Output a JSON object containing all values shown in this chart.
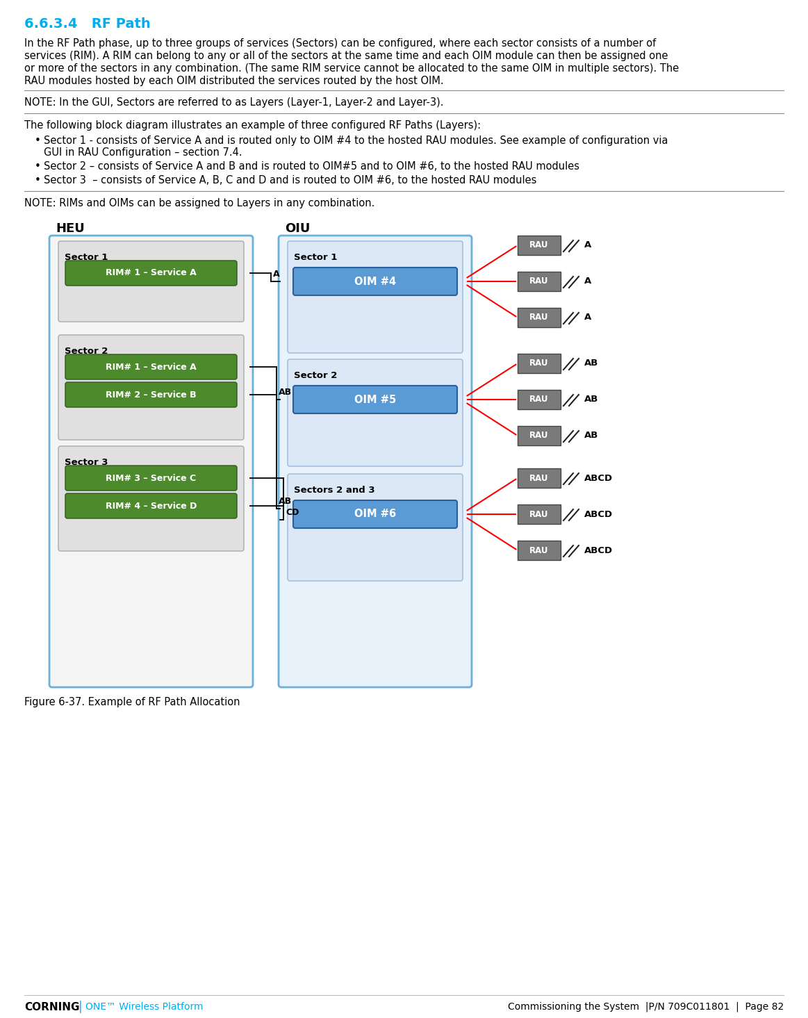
{
  "title": "6.6.3.4   RF Path",
  "title_color": "#00AEEF",
  "body_text_lines": [
    "In the RF Path phase, up to three groups of services (Sectors) can be configured, where each sector consists of a number of",
    "services (RIM). A RIM can belong to any or all of the sectors at the same time and each OIM module can then be assigned one",
    "or more of the sectors in any combination. (The same RIM service cannot be allocated to the same OIM in multiple sectors). The",
    "RAU modules hosted by each OIM distributed the services routed by the host OIM."
  ],
  "note1": "NOTE: In the GUI, Sectors are referred to as Layers (Layer-1, Layer-2 and Layer-3).",
  "intro_text": "The following block diagram illustrates an example of three configured RF Paths (Layers):",
  "bullet1_line1": "Sector 1 - consists of Service A and is routed only to OIM #4 to the hosted RAU modules. See example of configuration via",
  "bullet1_line2": "GUI in RAU Configuration – section 7.4.",
  "bullet2": "Sector 2 – consists of Service A and B and is routed to OIM#5 and to OIM #6, to the hosted RAU modules",
  "bullet3": "Sector 3  – consists of Service A, B, C and D and is routed to OIM #6, to the hosted RAU modules",
  "note2": "NOTE: RIMs and OIMs can be assigned to Layers in any combination.",
  "figure_caption": "Figure 6-37. Example of RF Path Allocation",
  "footer_left": "CORNING",
  "footer_one": "ONE™ Wireless Platform",
  "footer_right": "Commissioning the System  |P/N 709C011801  |  Page 82",
  "bg_color": "#ffffff",
  "text_color": "#000000",
  "heu_label": "HEU",
  "oiu_label": "OIU",
  "sector_labels_heu": [
    "Sector 1",
    "Sector 2",
    "Sector 3"
  ],
  "rim_labels": [
    [
      "RIM# 1 – Service A"
    ],
    [
      "RIM# 1 – Service A",
      "RIM# 2 – Service B"
    ],
    [
      "RIM# 3 – Service C",
      "RIM# 4 – Service D"
    ]
  ],
  "sector_labels_oiu": [
    "Sector 1",
    "Sector 2",
    "Sectors 2 and 3"
  ],
  "oim_labels": [
    "OIM #4",
    "OIM #5",
    "OIM #6"
  ],
  "rau_service_labels": [
    [
      "A",
      "A",
      "A"
    ],
    [
      "AB",
      "AB",
      "AB"
    ],
    [
      "ABCD",
      "ABCD",
      "ABCD"
    ]
  ],
  "conn_labels": [
    "A",
    "AB",
    "AB",
    "CD"
  ],
  "green_rim_color": "#4d8a2e",
  "green_rim_border": "#2d5a1a",
  "blue_oim_color": "#5b9bd5",
  "blue_oim_border": "#2a5f9e",
  "grey_rau_color": "#7a7a7a",
  "grey_rau_border": "#444444",
  "heu_outer_bg": "#f5f5f5",
  "heu_outer_border": "#6ab0d8",
  "oiu_outer_bg": "#e8f2fa",
  "oiu_outer_border": "#6ab0d8",
  "sector_heu_bg": "#e0e0e0",
  "sector_heu_border": "#aaaaaa",
  "sector_oiu_bg": "#dce8f5",
  "sector_oiu_border": "#9ab8d8"
}
